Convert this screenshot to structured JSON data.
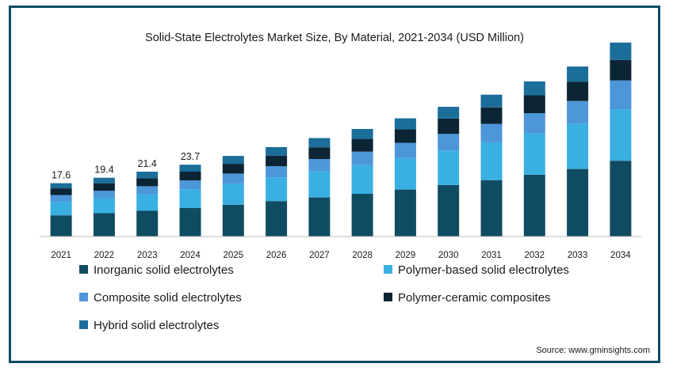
{
  "chart_data": {
    "type": "bar",
    "stacked": true,
    "title": "Solid-State Electrolytes Market Size, By Material, 2021-2034 (USD Million)",
    "categories": [
      "2021",
      "2022",
      "2023",
      "2024",
      "2025",
      "2026",
      "2027",
      "2028",
      "2029",
      "2030",
      "2031",
      "2032",
      "2033",
      "2034"
    ],
    "series": [
      {
        "name": "Inorganic solid electrolytes",
        "color": "#0f4c62",
        "values": [
          7.0,
          7.7,
          8.5,
          9.4,
          10.5,
          11.7,
          12.9,
          14.1,
          15.5,
          17.0,
          18.6,
          20.4,
          22.3,
          25.0
        ]
      },
      {
        "name": "Polymer-based solid electrolytes",
        "color": "#3ab0e2",
        "values": [
          4.5,
          5.0,
          5.5,
          6.2,
          7.0,
          7.8,
          8.6,
          9.4,
          10.4,
          11.4,
          12.5,
          13.6,
          15.0,
          17.0
        ]
      },
      {
        "name": "Composite solid electrolytes",
        "color": "#4d96d9",
        "values": [
          2.2,
          2.4,
          2.6,
          2.9,
          3.3,
          3.7,
          4.1,
          4.5,
          5.0,
          5.5,
          6.1,
          6.7,
          7.4,
          9.5
        ]
      },
      {
        "name": "Polymer-ceramic composites",
        "color": "#0b2535",
        "values": [
          2.2,
          2.4,
          2.6,
          2.9,
          3.2,
          3.5,
          3.8,
          4.2,
          4.5,
          5.0,
          5.4,
          5.9,
          6.4,
          6.8
        ]
      },
      {
        "name": "Hybrid solid electrolytes",
        "color": "#1b6d9a",
        "values": [
          1.7,
          1.9,
          2.2,
          2.3,
          2.6,
          2.8,
          3.1,
          3.3,
          3.6,
          3.9,
          4.2,
          4.6,
          5.0,
          5.7
        ]
      }
    ],
    "data_labels": [
      {
        "category": "2021",
        "text": "17.6"
      },
      {
        "category": "2022",
        "text": "19.4"
      },
      {
        "category": "2023",
        "text": "21.4"
      },
      {
        "category": "2024",
        "text": "23.7"
      }
    ],
    "ylim": [
      0,
      65
    ],
    "grid": false,
    "legend_position": "bottom"
  },
  "source": "Source: www.gminsights.com"
}
